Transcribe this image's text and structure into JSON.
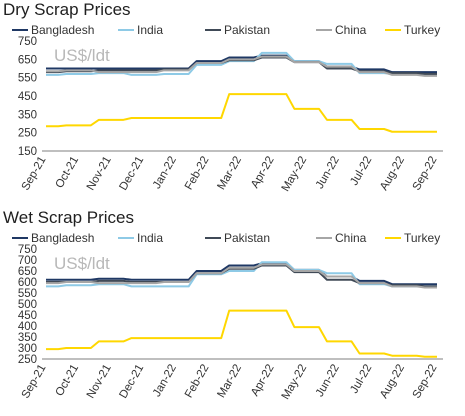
{
  "chart_data": [
    {
      "type": "line",
      "title": "Dry Scrap Prices",
      "unit_label": "US$/ldt",
      "ylim": [
        150,
        750
      ],
      "yticks": [
        150,
        250,
        350,
        450,
        550,
        650,
        750
      ],
      "x": [
        "Sep-21",
        "Oct-21",
        "Nov-21",
        "Dec-21",
        "Jan-22",
        "Feb-22",
        "Mar-22",
        "Apr-22",
        "May-22",
        "Jun-22",
        "Jul-22",
        "Aug-22",
        "Sep-22"
      ],
      "legend_position": "top",
      "grid": false,
      "series": [
        {
          "name": "Bangladesh",
          "color": "#1f3864",
          "values": [
            600,
            600,
            600,
            600,
            600,
            640,
            660,
            670,
            640,
            610,
            595,
            580,
            580
          ]
        },
        {
          "name": "India",
          "color": "#8ecae6",
          "values": [
            565,
            570,
            575,
            565,
            570,
            620,
            640,
            685,
            640,
            625,
            575,
            570,
            570
          ]
        },
        {
          "name": "Pakistan",
          "color": "#404a57",
          "values": [
            580,
            585,
            590,
            590,
            595,
            630,
            645,
            660,
            635,
            600,
            585,
            575,
            570
          ]
        },
        {
          "name": "China",
          "color": "#a6a6a6",
          "values": [
            585,
            590,
            580,
            580,
            590,
            630,
            650,
            665,
            635,
            610,
            580,
            565,
            560
          ]
        },
        {
          "name": "Turkey",
          "color": "#ffd700",
          "values": [
            285,
            290,
            320,
            330,
            330,
            330,
            460,
            460,
            380,
            320,
            270,
            255,
            255
          ]
        }
      ]
    },
    {
      "type": "line",
      "title": "Wet Scrap Prices",
      "unit_label": "US$/ldt",
      "ylim": [
        250,
        750
      ],
      "yticks": [
        250,
        300,
        350,
        400,
        450,
        500,
        550,
        600,
        650,
        700,
        750
      ],
      "x": [
        "Sep-21",
        "Oct-21",
        "Nov-21",
        "Dec-21",
        "Jan-22",
        "Feb-22",
        "Mar-22",
        "Apr-22",
        "May-22",
        "Jun-22",
        "Jul-22",
        "Aug-22",
        "Sep-22"
      ],
      "legend_position": "top",
      "grid": false,
      "series": [
        {
          "name": "Bangladesh",
          "color": "#1f3864",
          "values": [
            610,
            610,
            615,
            610,
            610,
            650,
            675,
            685,
            655,
            625,
            605,
            590,
            590
          ]
        },
        {
          "name": "India",
          "color": "#8ecae6",
          "values": [
            580,
            585,
            590,
            580,
            580,
            635,
            650,
            690,
            655,
            640,
            590,
            580,
            580
          ]
        },
        {
          "name": "Pakistan",
          "color": "#404a57",
          "values": [
            600,
            600,
            605,
            600,
            600,
            640,
            660,
            675,
            645,
            610,
            595,
            585,
            580
          ]
        },
        {
          "name": "China",
          "color": "#a6a6a6",
          "values": [
            595,
            600,
            595,
            595,
            600,
            640,
            665,
            680,
            650,
            625,
            595,
            580,
            575
          ]
        },
        {
          "name": "Turkey",
          "color": "#ffd700",
          "values": [
            295,
            300,
            330,
            345,
            345,
            345,
            470,
            470,
            395,
            330,
            275,
            265,
            260
          ]
        }
      ]
    }
  ]
}
